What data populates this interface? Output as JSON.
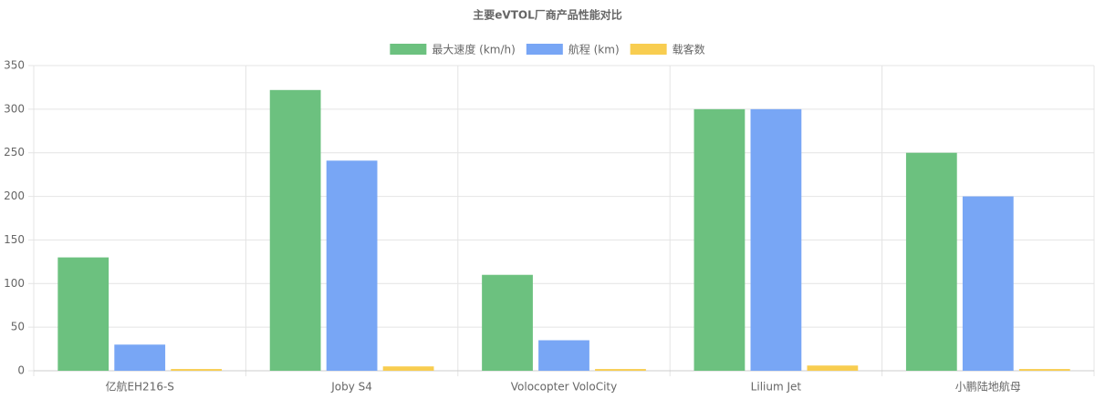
{
  "chart_data": {
    "type": "bar",
    "title": "主要eVTOL厂商产品性能对比",
    "categories": [
      "亿航EH216-S",
      "Joby S4",
      "Volocopter VoloCity",
      "Lilium Jet",
      "小鹏陆地航母"
    ],
    "series": [
      {
        "name": "最大速度 (km/h)",
        "color": "#6cc17f",
        "values": [
          130,
          322,
          110,
          300,
          250
        ]
      },
      {
        "name": "航程 (km)",
        "color": "#78a6f5",
        "values": [
          30,
          241,
          35,
          300,
          200
        ]
      },
      {
        "name": "载客数",
        "color": "#f8cd50",
        "values": [
          2,
          5,
          2,
          6,
          2
        ]
      }
    ],
    "ylim": [
      0,
      350
    ],
    "yticks": [
      0,
      50,
      100,
      150,
      200,
      250,
      300,
      350
    ],
    "grid": true,
    "legend": "top"
  }
}
